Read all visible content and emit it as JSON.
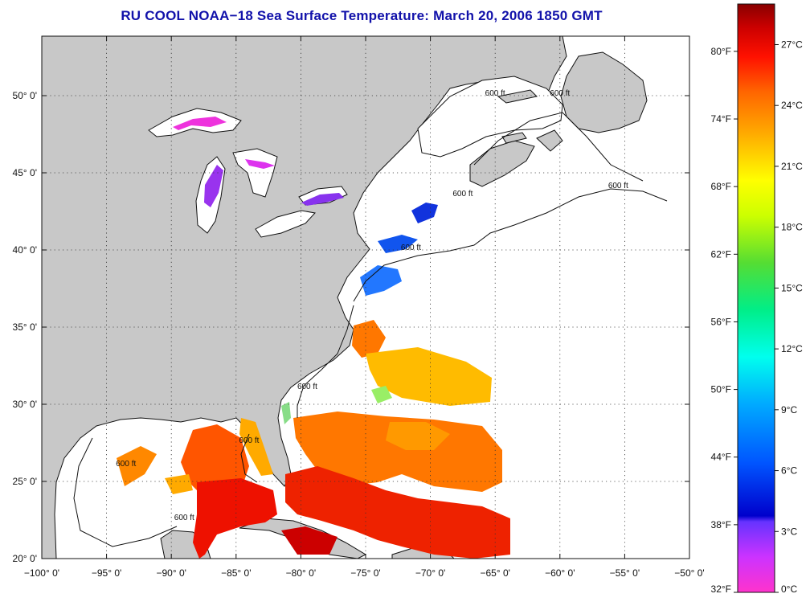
{
  "title": "RU COOL  NOAA−18  Sea Surface Temperature:  March 20, 2006 1850 GMT",
  "map": {
    "lon_range": [
      -100,
      -50
    ],
    "lat_range": [
      20,
      52
    ],
    "lon_ticks": [
      "−100° 0'",
      "−95° 0'",
      "−90° 0'",
      "−85° 0'",
      "−80° 0'",
      "−75° 0'",
      "−70° 0'",
      "−65° 0'",
      "−60° 0'",
      "−55° 0'",
      "−50° 0'"
    ],
    "lon_values": [
      -100,
      -95,
      -90,
      -85,
      -80,
      -75,
      -70,
      -65,
      -60,
      -55,
      -50
    ],
    "lat_ticks": [
      "20° 0'",
      "25° 0'",
      "30° 0'",
      "35° 0'",
      "40° 0'",
      "45° 0'",
      "50° 0'"
    ],
    "lat_values": [
      20,
      25,
      30,
      35,
      40,
      45,
      50
    ],
    "grid": "dotted",
    "land_color": "#c8c8c8",
    "isobath_label": "600 ft",
    "isobath_labels": [
      {
        "text": "600 ft",
        "lon": -71.5,
        "lat": 40.0
      },
      {
        "text": "600 ft",
        "lon": -67.5,
        "lat": 43.5
      },
      {
        "text": "600 ft",
        "lon": -55.5,
        "lat": 44.0
      },
      {
        "text": "600 ft",
        "lon": -60.0,
        "lat": 50.0
      },
      {
        "text": "600 ft",
        "lon": -65.0,
        "lat": 50.0
      },
      {
        "text": "600 ft",
        "lon": -79.5,
        "lat": 31.0
      },
      {
        "text": "600 ft",
        "lon": -84.0,
        "lat": 27.5
      },
      {
        "text": "600 ft",
        "lon": -93.5,
        "lat": 26.0
      },
      {
        "text": "600 ft",
        "lon": -89.0,
        "lat": 22.5
      }
    ]
  },
  "colorbar": {
    "fahrenheit_labels": [
      "80°F",
      "74°F",
      "68°F",
      "62°F",
      "56°F",
      "50°F",
      "44°F",
      "38°F",
      "32°F"
    ],
    "fahrenheit_values": [
      80,
      74,
      68,
      62,
      56,
      50,
      44,
      38,
      32
    ],
    "celsius_labels": [
      "27°C",
      "24°C",
      "21°C",
      "18°C",
      "15°C",
      "12°C",
      "9°C",
      "6°C",
      "3°C",
      "0°C"
    ],
    "celsius_values": [
      27,
      24,
      21,
      18,
      15,
      12,
      9,
      6,
      3,
      0
    ],
    "range_celsius": [
      0,
      29
    ],
    "stops": [
      "#ff33cc",
      "#9933ff",
      "#0000dd",
      "#0077ff",
      "#00ccff",
      "#00ffcc",
      "#33dd55",
      "#ccff00",
      "#ffff00",
      "#ffcc00",
      "#ff8800",
      "#ff3300",
      "#ee0000",
      "#990000"
    ]
  }
}
